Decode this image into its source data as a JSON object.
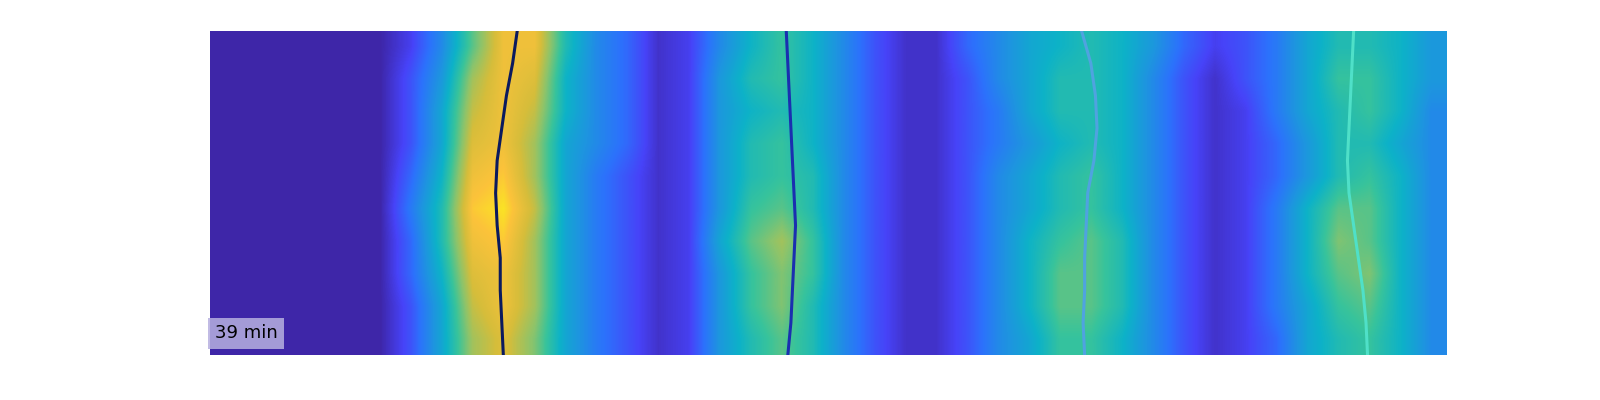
{
  "chart_data": {
    "type": "heatmap",
    "annotation": "39 min",
    "tick_labels": false,
    "xlim": [
      0,
      40
    ],
    "ylim": [
      10,
      0
    ],
    "color_range": [
      0,
      1
    ],
    "cells": [
      [
        0,
        0,
        0,
        0,
        0,
        0,
        0.1,
        0.3,
        0.6,
        0.85,
        0.85,
        0.5,
        0.3,
        0.2,
        0.05,
        0.1,
        0.3,
        0.45,
        0.55,
        0.45,
        0.3,
        0.15,
        0.05,
        0.05,
        0.2,
        0.3,
        0.4,
        0.45,
        0.5,
        0.45,
        0.35,
        0.2,
        0.1,
        0.15,
        0.25,
        0.4,
        0.5,
        0.5,
        0.45,
        0.35
      ],
      [
        0,
        0,
        0,
        0,
        0,
        0,
        0.15,
        0.35,
        0.7,
        0.85,
        0.8,
        0.45,
        0.3,
        0.2,
        0.05,
        0.1,
        0.35,
        0.5,
        0.55,
        0.45,
        0.3,
        0.15,
        0.05,
        0.05,
        0.15,
        0.3,
        0.4,
        0.5,
        0.5,
        0.45,
        0.3,
        0.15,
        0.05,
        0.15,
        0.25,
        0.4,
        0.55,
        0.55,
        0.45,
        0.35
      ],
      [
        0,
        0,
        0,
        0,
        0,
        0,
        0.15,
        0.4,
        0.75,
        0.85,
        0.75,
        0.45,
        0.3,
        0.2,
        0.05,
        0.1,
        0.35,
        0.45,
        0.5,
        0.45,
        0.3,
        0.15,
        0.05,
        0.05,
        0.15,
        0.25,
        0.4,
        0.5,
        0.5,
        0.45,
        0.3,
        0.15,
        0.05,
        0.1,
        0.25,
        0.4,
        0.5,
        0.55,
        0.45,
        0.3
      ],
      [
        0,
        0,
        0,
        0,
        0,
        0,
        0.15,
        0.4,
        0.8,
        0.85,
        0.7,
        0.4,
        0.3,
        0.2,
        0.05,
        0.1,
        0.35,
        0.5,
        0.55,
        0.45,
        0.3,
        0.15,
        0.05,
        0.05,
        0.15,
        0.25,
        0.35,
        0.45,
        0.5,
        0.45,
        0.3,
        0.15,
        0.05,
        0.1,
        0.2,
        0.35,
        0.5,
        0.5,
        0.4,
        0.3
      ],
      [
        0,
        0,
        0,
        0,
        0,
        0,
        0.2,
        0.45,
        0.85,
        0.9,
        0.7,
        0.4,
        0.25,
        0.15,
        0.05,
        0.1,
        0.35,
        0.5,
        0.55,
        0.5,
        0.3,
        0.15,
        0.05,
        0.05,
        0.15,
        0.3,
        0.4,
        0.5,
        0.55,
        0.45,
        0.3,
        0.15,
        0.05,
        0.1,
        0.2,
        0.35,
        0.5,
        0.55,
        0.45,
        0.3
      ],
      [
        0,
        0,
        0,
        0,
        0,
        0,
        0.25,
        0.5,
        0.9,
        0.95,
        0.75,
        0.4,
        0.25,
        0.15,
        0.05,
        0.1,
        0.35,
        0.55,
        0.6,
        0.5,
        0.3,
        0.15,
        0.05,
        0.05,
        0.15,
        0.3,
        0.4,
        0.5,
        0.55,
        0.45,
        0.3,
        0.15,
        0.05,
        0.1,
        0.25,
        0.45,
        0.6,
        0.6,
        0.45,
        0.3
      ],
      [
        0,
        0,
        0,
        0,
        0,
        0,
        0.2,
        0.5,
        0.85,
        0.9,
        0.7,
        0.4,
        0.25,
        0.15,
        0.05,
        0.1,
        0.4,
        0.6,
        0.7,
        0.55,
        0.3,
        0.15,
        0.05,
        0.05,
        0.15,
        0.3,
        0.45,
        0.55,
        0.6,
        0.5,
        0.3,
        0.15,
        0.05,
        0.1,
        0.25,
        0.45,
        0.65,
        0.6,
        0.45,
        0.3
      ],
      [
        0,
        0,
        0,
        0,
        0,
        0,
        0.2,
        0.45,
        0.8,
        0.85,
        0.7,
        0.4,
        0.25,
        0.15,
        0.05,
        0.1,
        0.35,
        0.55,
        0.65,
        0.55,
        0.3,
        0.15,
        0.05,
        0.05,
        0.15,
        0.3,
        0.45,
        0.6,
        0.6,
        0.5,
        0.3,
        0.15,
        0.05,
        0.1,
        0.25,
        0.45,
        0.6,
        0.65,
        0.45,
        0.3
      ],
      [
        0,
        0,
        0,
        0,
        0,
        0,
        0.15,
        0.4,
        0.75,
        0.85,
        0.7,
        0.4,
        0.25,
        0.15,
        0.05,
        0.1,
        0.35,
        0.55,
        0.65,
        0.5,
        0.3,
        0.15,
        0.05,
        0.05,
        0.15,
        0.3,
        0.45,
        0.6,
        0.6,
        0.5,
        0.3,
        0.15,
        0.05,
        0.1,
        0.25,
        0.4,
        0.55,
        0.6,
        0.45,
        0.3
      ],
      [
        0,
        0,
        0,
        0,
        0,
        0,
        0.15,
        0.4,
        0.7,
        0.8,
        0.65,
        0.4,
        0.25,
        0.15,
        0.05,
        0.1,
        0.35,
        0.5,
        0.6,
        0.5,
        0.3,
        0.15,
        0.05,
        0.05,
        0.15,
        0.3,
        0.4,
        0.55,
        0.55,
        0.45,
        0.3,
        0.15,
        0.05,
        0.1,
        0.2,
        0.4,
        0.5,
        0.55,
        0.45,
        0.3
      ]
    ],
    "series": [
      {
        "color": "#0b1a5e",
        "x": [
          9.95,
          9.8,
          9.6,
          9.45,
          9.3,
          9.25,
          9.3,
          9.4,
          9.4,
          9.45,
          9.5
        ],
        "y": [
          0,
          1,
          2,
          3,
          4,
          5,
          6,
          7,
          8,
          9,
          10
        ]
      },
      {
        "color": "#1a2fb0",
        "x": [
          18.65,
          18.7,
          18.75,
          18.8,
          18.85,
          18.9,
          18.95,
          18.9,
          18.85,
          18.8,
          18.7
        ],
        "y": [
          0,
          1,
          2,
          3,
          4,
          5,
          6,
          7,
          8,
          9,
          10
        ]
      },
      {
        "color": "#4fa3e0",
        "x": [
          28.2,
          28.5,
          28.65,
          28.7,
          28.6,
          28.4,
          28.35,
          28.3,
          28.3,
          28.25,
          28.3
        ],
        "y": [
          0,
          1,
          2,
          3,
          4,
          5,
          6,
          7,
          8,
          9,
          10
        ]
      },
      {
        "color": "#4fe0c8",
        "x": [
          37.0,
          36.95,
          36.9,
          36.85,
          36.8,
          36.85,
          37.0,
          37.15,
          37.3,
          37.4,
          37.45
        ],
        "y": [
          0,
          1,
          2,
          3,
          4,
          5,
          6,
          7,
          8,
          9,
          10
        ]
      }
    ]
  }
}
